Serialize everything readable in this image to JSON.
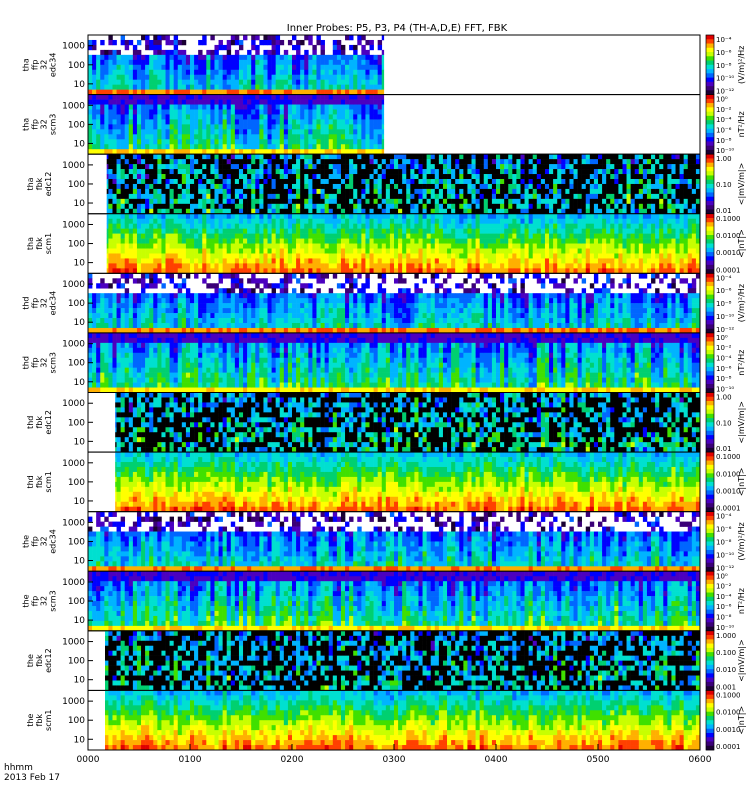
{
  "title": "Inner Probes: P5, P3, P4 (TH-A,D,E) FFT, FBK",
  "time_label": "hhmm",
  "date_label": "2013 Feb 17",
  "colors": {
    "palette": [
      "#1a0033",
      "#3a0077",
      "#4b00c0",
      "#0000ff",
      "#0066ff",
      "#00b4ff",
      "#00e0d0",
      "#00d070",
      "#40e000",
      "#c8ff00",
      "#ffff00",
      "#ffb000",
      "#ff4000",
      "#e00000"
    ],
    "background_black": "#000000"
  },
  "chart_data": {
    "type": "heatmap",
    "x_ticks": [
      "0000",
      "0100",
      "0200",
      "0300",
      "0400",
      "0500",
      "0600"
    ],
    "x_range": [
      0,
      360
    ],
    "panels": [
      {
        "id": "tha-ffp32-edc34",
        "label": [
          "tha",
          "ffp",
          "32",
          "edc34"
        ],
        "yticks": [
          "1000",
          "100",
          "10"
        ],
        "bar_ticks": [
          "10⁻⁴",
          "10⁻⁶",
          "10⁻⁸",
          "10⁻¹⁰",
          "10⁻¹²"
        ],
        "bar_unit": "(V/m)²/Hz",
        "t_start": 0,
        "t_end": 174,
        "kind": "fft-e"
      },
      {
        "id": "tha-ffp32-scm3",
        "label": [
          "tha",
          "ffp",
          "32",
          "scm3"
        ],
        "yticks": [
          "1000",
          "100",
          "10"
        ],
        "bar_ticks": [
          "10⁰",
          "10⁻²",
          "10⁻⁴",
          "10⁻⁶",
          "10⁻⁸",
          "10⁻¹⁰"
        ],
        "bar_unit": "nT²/Hz",
        "t_start": 0,
        "t_end": 174,
        "kind": "fft-b"
      },
      {
        "id": "tha-fbk-edc12",
        "label": [
          "tha",
          "fbk",
          "edc12"
        ],
        "yticks": [
          "1000",
          "100",
          "10"
        ],
        "bar_ticks": [
          "1.00",
          "0.10",
          "0.01"
        ],
        "bar_unit": "<|mV/m|>",
        "t_start": 11,
        "t_end": 360,
        "kind": "fbk-e"
      },
      {
        "id": "tha-fbk-scm1",
        "label": [
          "tha",
          "fbk",
          "scm1"
        ],
        "yticks": [
          "1000",
          "100",
          "10"
        ],
        "bar_ticks": [
          "0.1000",
          "0.0100",
          "0.0010",
          "0.0001"
        ],
        "bar_unit": "<|nT|>",
        "t_start": 11,
        "t_end": 360,
        "kind": "fbk-b"
      },
      {
        "id": "thd-ffp32-edc34",
        "label": [
          "thd",
          "ffp",
          "32",
          "edc34"
        ],
        "yticks": [
          "1000",
          "100",
          "10"
        ],
        "bar_ticks": [
          "10⁻⁴",
          "10⁻⁶",
          "10⁻⁸",
          "10⁻¹⁰",
          "10⁻¹²"
        ],
        "bar_unit": "(V/m)²/Hz",
        "t_start": 0,
        "t_end": 360,
        "kind": "fft-e"
      },
      {
        "id": "thd-ffp32-scm3",
        "label": [
          "thd",
          "ffp",
          "32",
          "scm3"
        ],
        "yticks": [
          "1000",
          "100",
          "10"
        ],
        "bar_ticks": [
          "10⁰",
          "10⁻²",
          "10⁻⁴",
          "10⁻⁶",
          "10⁻⁸",
          "10⁻¹⁰"
        ],
        "bar_unit": "nT²/Hz",
        "t_start": 0,
        "t_end": 360,
        "kind": "fft-b"
      },
      {
        "id": "thd-fbk-edc12",
        "label": [
          "thd",
          "fbk",
          "edc12"
        ],
        "yticks": [
          "1000",
          "100",
          "10"
        ],
        "bar_ticks": [
          "1.00",
          "0.10",
          "0.01"
        ],
        "bar_unit": "<|mV/m|>",
        "t_start": 16,
        "t_end": 360,
        "kind": "fbk-e"
      },
      {
        "id": "thd-fbk-scm1",
        "label": [
          "thd",
          "fbk",
          "scm1"
        ],
        "yticks": [
          "1000",
          "100",
          "10"
        ],
        "bar_ticks": [
          "0.1000",
          "0.0100",
          "0.0010",
          "0.0001"
        ],
        "bar_unit": "<|nT|>",
        "t_start": 16,
        "t_end": 360,
        "kind": "fbk-b"
      },
      {
        "id": "the-ffp32-edc34",
        "label": [
          "the",
          "ffp",
          "32",
          "edc34"
        ],
        "yticks": [
          "1000",
          "100",
          "10"
        ],
        "bar_ticks": [
          "10⁻⁴",
          "10⁻⁶",
          "10⁻⁸",
          "10⁻¹⁰",
          "10⁻¹²"
        ],
        "bar_unit": "(V/m)²/Hz",
        "t_start": 0,
        "t_end": 360,
        "kind": "fft-e"
      },
      {
        "id": "the-ffp32-scm3",
        "label": [
          "the",
          "ffp",
          "32",
          "scm3"
        ],
        "yticks": [
          "1000",
          "100",
          "10"
        ],
        "bar_ticks": [
          "10⁰",
          "10⁻²",
          "10⁻⁴",
          "10⁻⁶",
          "10⁻⁸",
          "10⁻¹⁰"
        ],
        "bar_unit": "nT²/Hz",
        "t_start": 0,
        "t_end": 360,
        "kind": "fft-b"
      },
      {
        "id": "the-fbk-edc12",
        "label": [
          "the",
          "fbk",
          "edc12"
        ],
        "yticks": [
          "1000",
          "100",
          "10"
        ],
        "bar_ticks": [
          "1.000",
          "0.100",
          "0.010",
          "0.001"
        ],
        "bar_unit": "<|mV/m|>",
        "t_start": 10,
        "t_end": 360,
        "kind": "fbk-e"
      },
      {
        "id": "the-fbk-scm1",
        "label": [
          "the",
          "fbk",
          "scm1"
        ],
        "yticks": [
          "1000",
          "100",
          "10"
        ],
        "bar_ticks": [
          "0.1000",
          "0.0100",
          "0.0010",
          "0.0001"
        ],
        "bar_unit": "<|nT|>",
        "t_start": 10,
        "t_end": 360,
        "kind": "fbk-b"
      }
    ]
  }
}
